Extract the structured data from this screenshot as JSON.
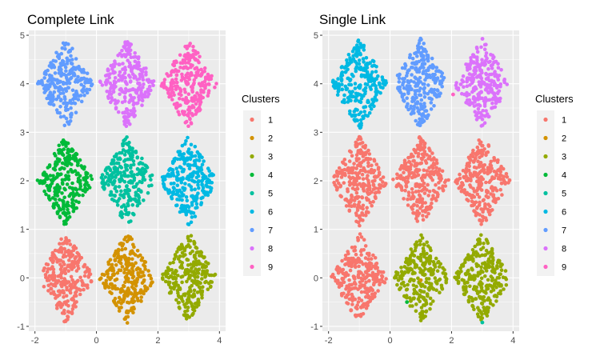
{
  "chart_data": [
    {
      "type": "scatter",
      "title": "Complete Link",
      "xlabel": "",
      "ylabel": "",
      "xlim": [
        -2.2,
        4.2
      ],
      "ylim": [
        -1.1,
        5.1
      ],
      "x_ticks": [
        -2,
        0,
        2,
        4
      ],
      "y_ticks": [
        -1,
        0,
        1,
        2,
        3,
        4,
        5
      ],
      "grid": true,
      "legend": {
        "title": "Clusters",
        "position": "right",
        "entries": [
          "1",
          "2",
          "3",
          "4",
          "5",
          "6",
          "7",
          "8",
          "9"
        ]
      },
      "groups": [
        {
          "center": [
            -1,
            0
          ],
          "cluster": "1"
        },
        {
          "center": [
            1,
            0
          ],
          "cluster": "2"
        },
        {
          "center": [
            3,
            0
          ],
          "cluster": "3"
        },
        {
          "center": [
            -1,
            2
          ],
          "cluster": "4"
        },
        {
          "center": [
            1,
            2
          ],
          "cluster": "5"
        },
        {
          "center": [
            3,
            2
          ],
          "cluster": "6"
        },
        {
          "center": [
            -1,
            4
          ],
          "cluster": "7"
        },
        {
          "center": [
            1,
            4
          ],
          "cluster": "8"
        },
        {
          "center": [
            3,
            4
          ],
          "cluster": "9"
        }
      ],
      "outliers": []
    },
    {
      "type": "scatter",
      "title": "Single Link",
      "xlabel": "",
      "ylabel": "",
      "xlim": [
        -2.2,
        4.2
      ],
      "ylim": [
        -1.1,
        5.1
      ],
      "x_ticks": [
        -2,
        0,
        2,
        4
      ],
      "y_ticks": [
        -1,
        0,
        1,
        2,
        3,
        4,
        5
      ],
      "grid": true,
      "legend": {
        "title": "Clusters",
        "position": "right",
        "entries": [
          "1",
          "2",
          "3",
          "4",
          "5",
          "6",
          "7",
          "8",
          "9"
        ]
      },
      "groups": [
        {
          "center": [
            -1,
            0
          ],
          "cluster": "1"
        },
        {
          "center": [
            1,
            0
          ],
          "cluster": "3"
        },
        {
          "center": [
            3,
            0
          ],
          "cluster": "3"
        },
        {
          "center": [
            -1,
            2
          ],
          "cluster": "1"
        },
        {
          "center": [
            1,
            2
          ],
          "cluster": "1"
        },
        {
          "center": [
            3,
            2
          ],
          "cluster": "1"
        },
        {
          "center": [
            -1,
            4
          ],
          "cluster": "6"
        },
        {
          "center": [
            1,
            4
          ],
          "cluster": "7"
        },
        {
          "center": [
            3,
            4
          ],
          "cluster": "8"
        }
      ],
      "outliers": [
        {
          "x": 0.55,
          "y": -0.5,
          "cluster": "4"
        },
        {
          "x": 3.0,
          "y": -0.92,
          "cluster": "5"
        },
        {
          "x": 2.05,
          "y": 3.78,
          "cluster": "9"
        },
        {
          "x": 1.0,
          "y": -0.05,
          "cluster": "2"
        }
      ]
    }
  ],
  "colors": {
    "1": "#F8766D",
    "2": "#D39200",
    "3": "#93AA00",
    "4": "#00BA38",
    "5": "#00C19F",
    "6": "#00B9E3",
    "7": "#619CFF",
    "8": "#DB72FB",
    "9": "#FF61C3"
  },
  "panel_bg": "#EBEBEB",
  "grid_color": "#FFFFFF"
}
